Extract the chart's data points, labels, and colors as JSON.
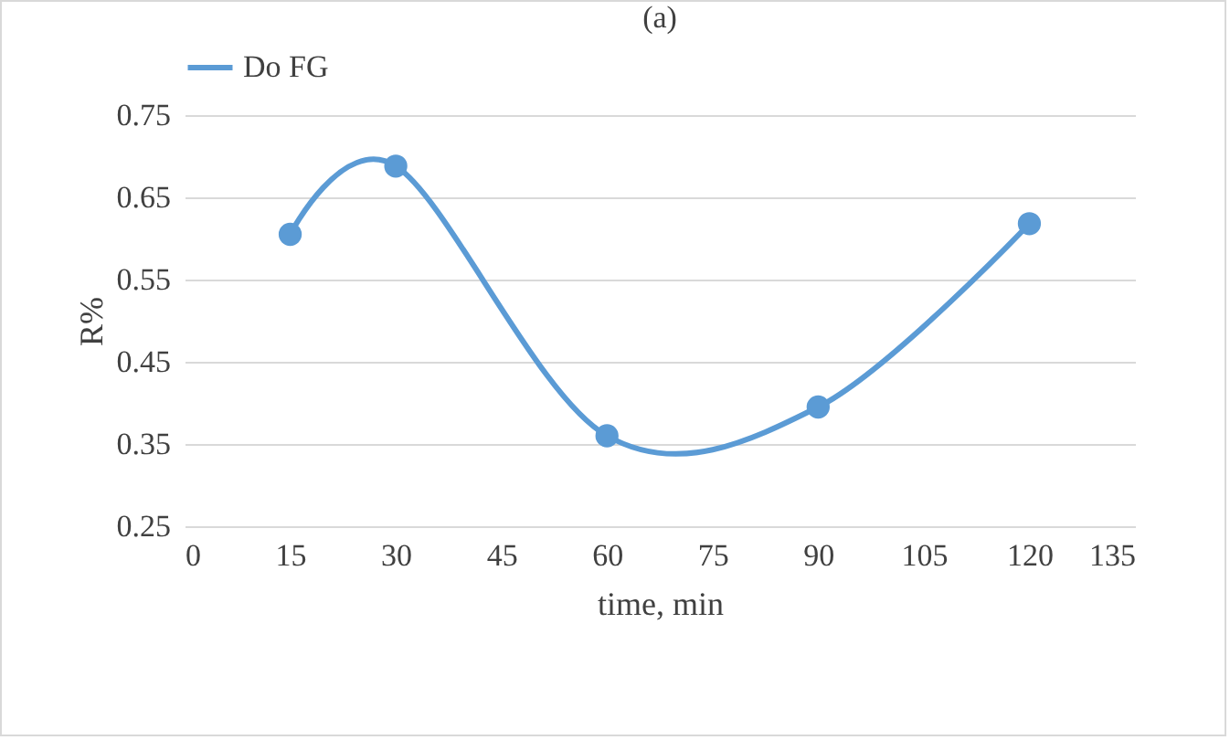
{
  "chart_data": {
    "type": "line",
    "title": "(a)",
    "xlabel": "time, min",
    "ylabel": "R%",
    "x": [
      15,
      30,
      60,
      90,
      120
    ],
    "series": [
      {
        "name": "Do FG",
        "color": "#5b9bd5",
        "values": [
          0.605,
          0.688,
          0.36,
          0.395,
          0.618
        ]
      }
    ],
    "xlim": [
      0,
      135
    ],
    "xticks": [
      0,
      15,
      30,
      45,
      60,
      75,
      90,
      105,
      120,
      135
    ],
    "ylim": [
      0.25,
      0.75
    ],
    "yticks": [
      0.25,
      0.35,
      0.45,
      0.55,
      0.65,
      0.75
    ],
    "grid": "y",
    "legend": "top",
    "marker": "circle",
    "line_style": "solid"
  }
}
